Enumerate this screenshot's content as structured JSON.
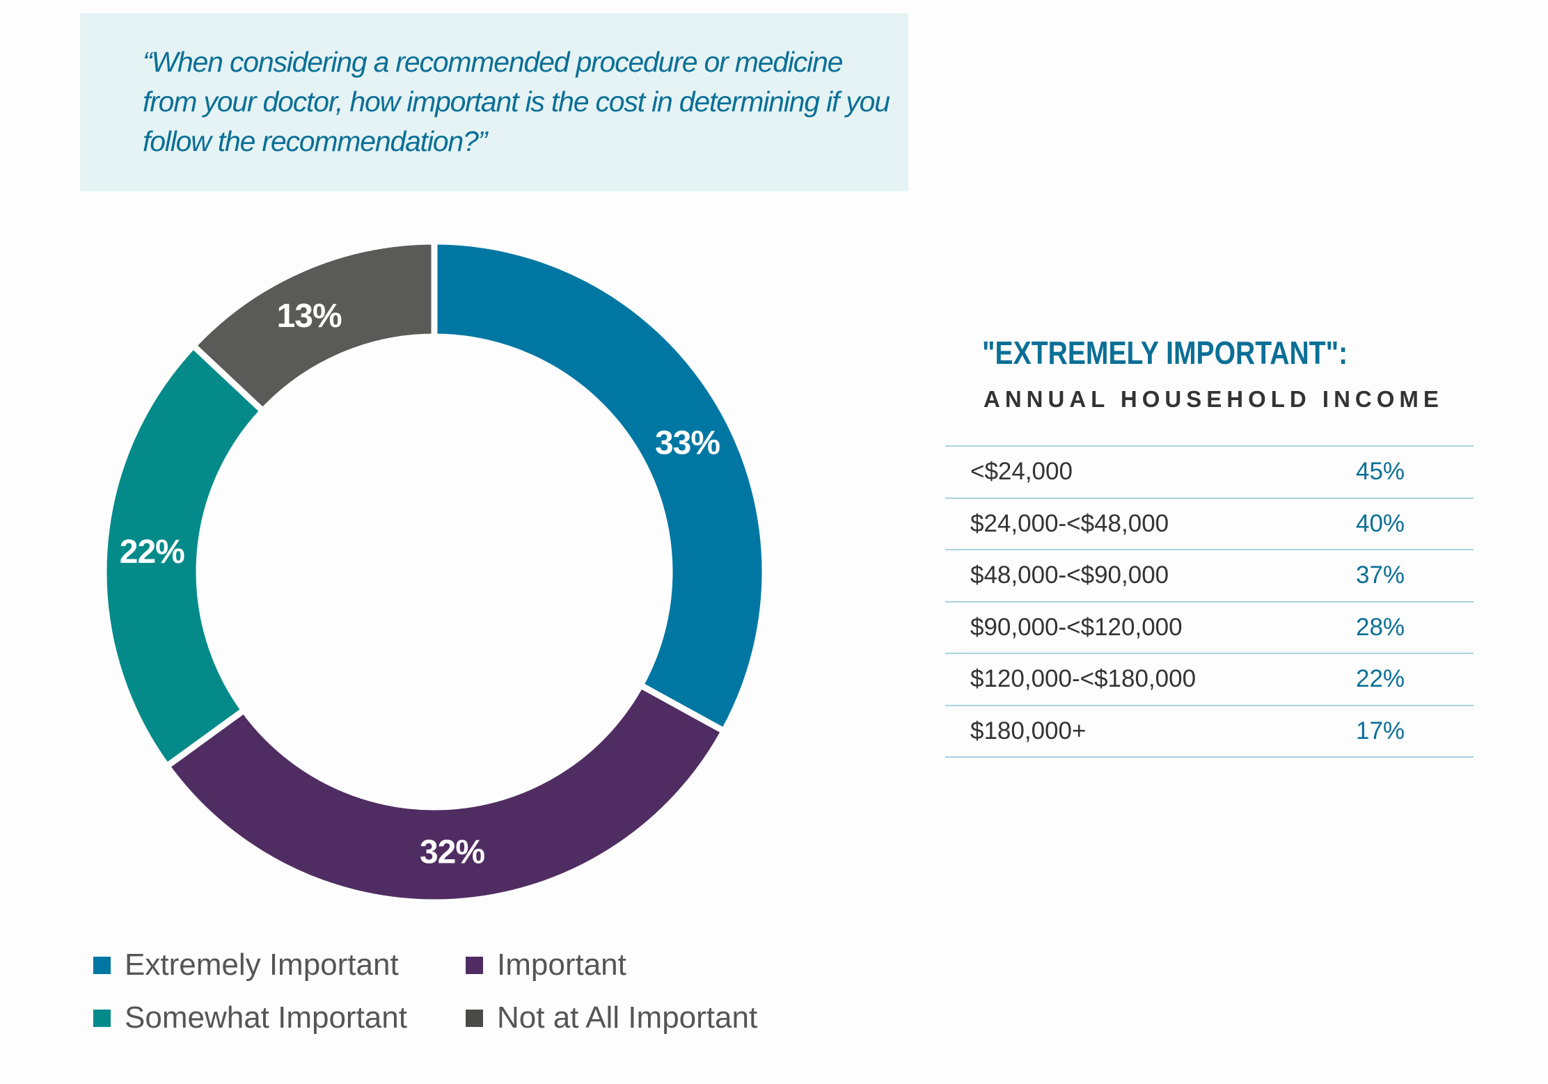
{
  "question": "“When considering a recommended procedure or medicine from your doctor, how important is the cost in determining if you follow the recommendation?”",
  "chart_data": {
    "type": "pie",
    "subtype": "donut",
    "categories": [
      "Extremely Important",
      "Important",
      "Somewhat Important",
      "Not at All Important"
    ],
    "values": [
      33,
      32,
      22,
      13
    ],
    "labels": [
      "33%",
      "32%",
      "22%",
      "13%"
    ],
    "colors": [
      "#0077a3",
      "#4f2d62",
      "#058a8a",
      "#5a5b58"
    ],
    "start": "top, clockwise",
    "legend_position": "bottom"
  },
  "legend": [
    {
      "label": "Extremely Important",
      "color": "#0077a3"
    },
    {
      "label": "Important",
      "color": "#4f2d62"
    },
    {
      "label": "Somewhat Important",
      "color": "#058a8a"
    },
    {
      "label": "Not at All Important",
      "color": "#4a4a48"
    }
  ],
  "side": {
    "title": "\"EXTREMELY IMPORTANT\":",
    "subtitle": "ANNUAL HOUSEHOLD INCOME",
    "rows": [
      {
        "income": "<$24,000",
        "value": "45%"
      },
      {
        "income": "$24,000-<$48,000",
        "value": "40%"
      },
      {
        "income": "$48,000-<$90,000",
        "value": "37%"
      },
      {
        "income": "$90,000-<$120,000",
        "value": "28%"
      },
      {
        "income": "$120,000-<$180,000",
        "value": "22%"
      },
      {
        "income": "$180,000+",
        "value": "17%"
      }
    ]
  }
}
